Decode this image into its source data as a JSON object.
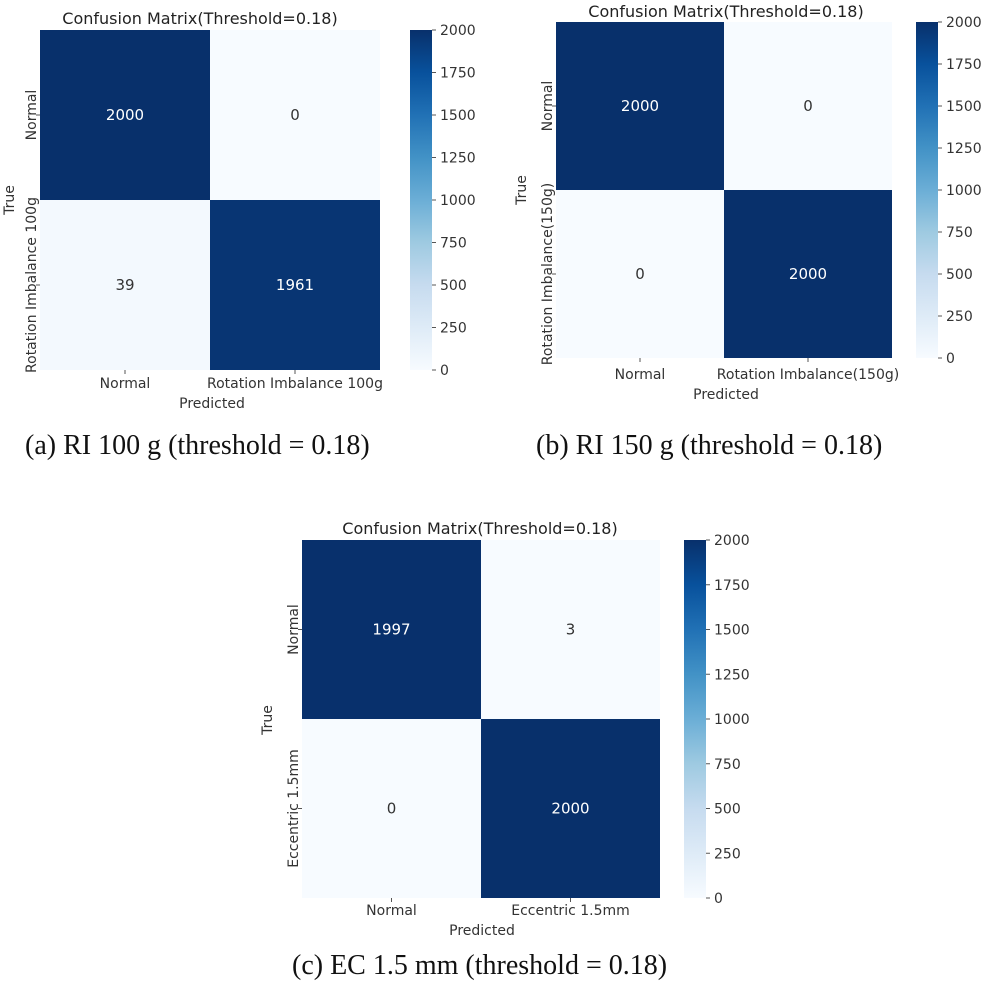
{
  "chart_data": [
    {
      "type": "heatmap",
      "title": "Confusion Matrix(Threshold=0.18)",
      "xlabel": "Predicted",
      "ylabel": "True",
      "x_categories": [
        "Normal",
        "Rotation Imbalance 100g"
      ],
      "y_categories": [
        "Normal",
        "Rotation Imbalance 100g"
      ],
      "values": [
        [
          2000,
          0
        ],
        [
          39,
          1961
        ]
      ],
      "colorbar": {
        "range": [
          0,
          2000
        ],
        "ticks": [
          0,
          250,
          500,
          750,
          1000,
          1250,
          1500,
          1750,
          2000
        ]
      },
      "caption": "(a) RI 100 g (threshold = 0.18)"
    },
    {
      "type": "heatmap",
      "title": "Confusion Matrix(Threshold=0.18)",
      "xlabel": "Predicted",
      "ylabel": "True",
      "x_categories": [
        "Normal",
        "Rotation Imbalance(150g)"
      ],
      "y_categories": [
        "Normal",
        "Rotation Imbalance(150g)"
      ],
      "values": [
        [
          2000,
          0
        ],
        [
          0,
          2000
        ]
      ],
      "colorbar": {
        "range": [
          0,
          2000
        ],
        "ticks": [
          0,
          250,
          500,
          750,
          1000,
          1250,
          1500,
          1750,
          2000
        ]
      },
      "caption": "(b) RI 150 g (threshold = 0.18)"
    },
    {
      "type": "heatmap",
      "title": "Confusion Matrix(Threshold=0.18)",
      "xlabel": "Predicted",
      "ylabel": "True",
      "x_categories": [
        "Normal",
        "Eccentric 1.5mm"
      ],
      "y_categories": [
        "Normal",
        "Eccentric 1.5mm"
      ],
      "values": [
        [
          1997,
          3
        ],
        [
          0,
          2000
        ]
      ],
      "colorbar": {
        "range": [
          0,
          2000
        ],
        "ticks": [
          0,
          250,
          500,
          750,
          1000,
          1250,
          1500,
          1750,
          2000
        ]
      },
      "caption": "(c) EC 1.5 mm (threshold = 0.18)"
    }
  ],
  "colors": {
    "high": "#08306b",
    "low": "#f7fbff",
    "dark_text": "#333333",
    "light_text": "#ffffff"
  }
}
